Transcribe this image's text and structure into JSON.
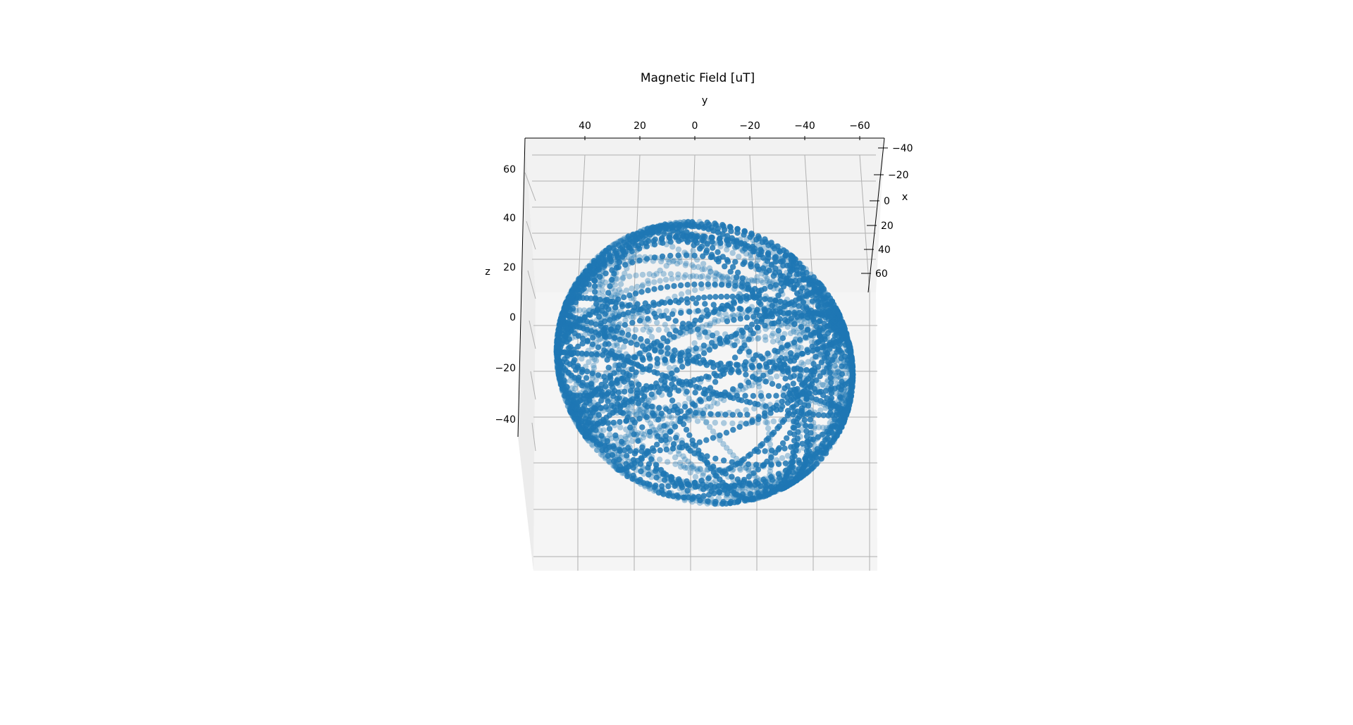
{
  "chart_data": {
    "type": "scatter",
    "projection": "3d",
    "title": "Magnetic Field [uT]",
    "xlabel": "x",
    "ylabel": "y",
    "zlabel": "z",
    "x_ticks": [
      "−40",
      "−20",
      "0",
      "20",
      "40",
      "60"
    ],
    "y_ticks": [
      "40",
      "20",
      "0",
      "−20",
      "−40",
      "−60"
    ],
    "z_ticks": [
      "60",
      "40",
      "20",
      "0",
      "−20",
      "−40"
    ],
    "xlim": [
      -45,
      70
    ],
    "ylim": [
      -65,
      60
    ],
    "zlim": [
      -50,
      70
    ],
    "grid": true,
    "marker_color": "#1f77b4",
    "pane_color": "#f2f2f2",
    "point_cloud": {
      "shape": "sphere",
      "center": [
        10,
        -5,
        10
      ],
      "radius": 55,
      "description_of_distribution": "samples lie on a sphere-like surface traced by many curved paths"
    }
  }
}
